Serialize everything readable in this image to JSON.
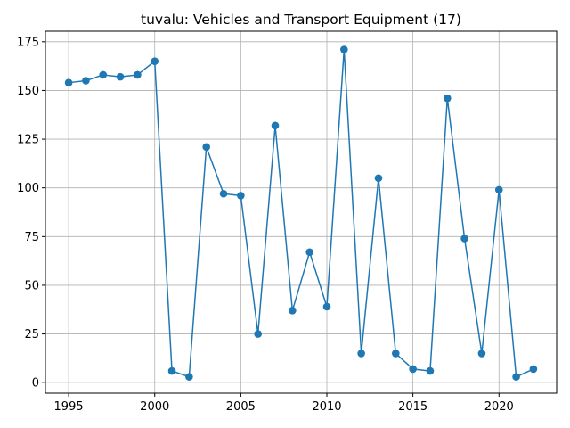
{
  "chart_data": {
    "type": "line",
    "title": "tuvalu: Vehicles and Transport Equipment (17)",
    "xlabel": "",
    "ylabel": "",
    "xlim": [
      1993.65,
      2023.35
    ],
    "ylim": [
      -5.4,
      180.4
    ],
    "grid": true,
    "xticks": [
      1995,
      2000,
      2005,
      2010,
      2015,
      2020
    ],
    "yticks": [
      0,
      25,
      50,
      75,
      100,
      125,
      150,
      175
    ],
    "series": [
      {
        "color": "#1f77b4",
        "marker": "circle",
        "x": [
          1995,
          1996,
          1997,
          1998,
          1999,
          2000,
          2001,
          2002,
          2003,
          2004,
          2005,
          2006,
          2007,
          2008,
          2009,
          2010,
          2011,
          2012,
          2013,
          2014,
          2015,
          2016,
          2017,
          2018,
          2019,
          2020,
          2021,
          2022
        ],
        "y": [
          154,
          155,
          158,
          157,
          158,
          165,
          6,
          3,
          121,
          97,
          96,
          25,
          132,
          37,
          67,
          39,
          171,
          15,
          105,
          15,
          7,
          6,
          146,
          74,
          15,
          99,
          3,
          7
        ]
      }
    ]
  }
}
